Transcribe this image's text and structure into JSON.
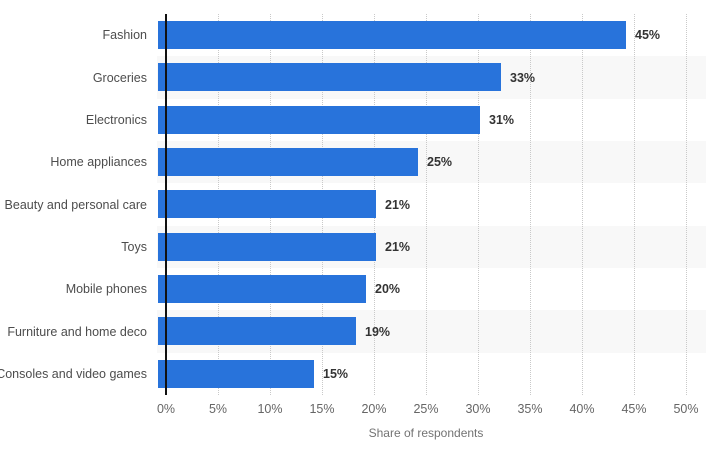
{
  "chart_data": {
    "type": "bar",
    "orientation": "horizontal",
    "title": "",
    "xlabel": "Share of respondents",
    "ylabel": "",
    "xlim": [
      0,
      50
    ],
    "categories": [
      "Fashion",
      "Groceries",
      "Electronics",
      "Home appliances",
      "Beauty and personal care",
      "Toys",
      "Mobile phones",
      "Furniture and home deco",
      "Consoles and video games"
    ],
    "values": [
      45,
      33,
      31,
      25,
      21,
      21,
      20,
      19,
      15
    ],
    "value_labels": [
      "45%",
      "33%",
      "31%",
      "25%",
      "21%",
      "21%",
      "20%",
      "19%",
      "15%"
    ],
    "x_ticks": [
      "0%",
      "5%",
      "10%",
      "15%",
      "20%",
      "25%",
      "30%",
      "35%",
      "40%",
      "45%",
      "50%"
    ],
    "x_tick_values": [
      0,
      5,
      10,
      15,
      20,
      25,
      30,
      35,
      40,
      45,
      50
    ],
    "grid": "vertical-dotted",
    "legend": "none",
    "colors": {
      "bar": "#2873db",
      "row_band": "#f8f8f8",
      "gridline": "#c9c9c9",
      "axis_line": "#111111",
      "category_label": "#4d4d4d",
      "value_label": "#333333",
      "tick_label": "#666666",
      "axis_title": "#737373",
      "background": "#ffffff"
    }
  }
}
